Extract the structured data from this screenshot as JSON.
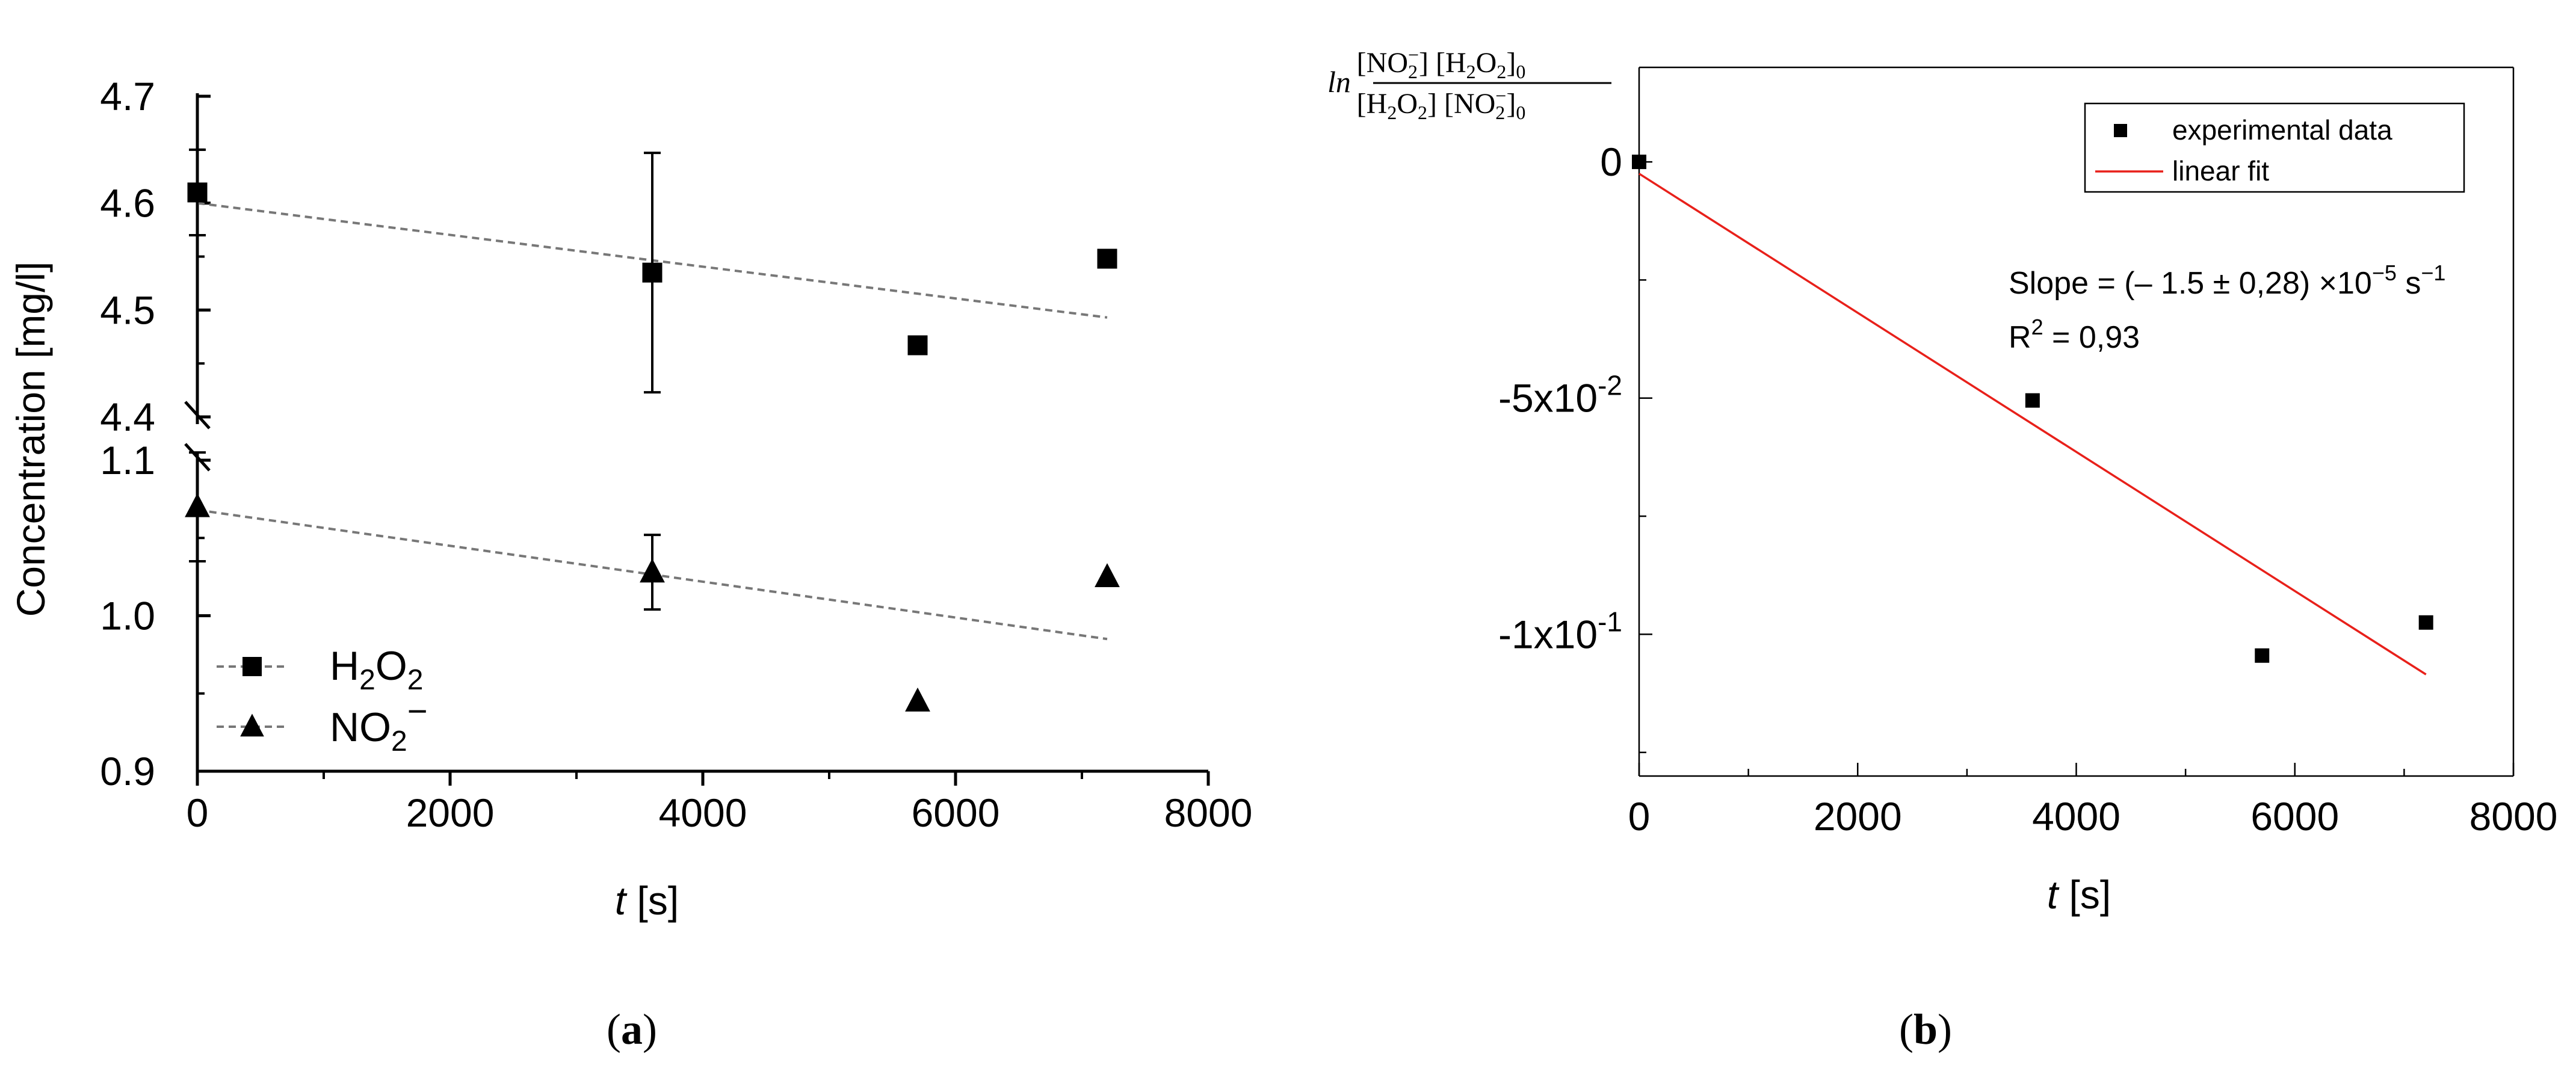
{
  "chart_data": [
    {
      "panel_label": "a",
      "type": "scatter",
      "xlabel_italic": "t",
      "xlabel_unit": "[s]",
      "ylabel": "Concentration [mg/l]",
      "x_ticks": [
        "0",
        "2000",
        "4000",
        "6000",
        "8000"
      ],
      "xlim": [
        0,
        8000
      ],
      "y_axis_broken": true,
      "y_upper": {
        "ylim": [
          4.4,
          4.7
        ],
        "ticks": [
          "4.4",
          "4.5",
          "4.6",
          "4.7"
        ]
      },
      "y_lower": {
        "ylim": [
          0.9,
          1.1
        ],
        "ticks": [
          "0.9",
          "1.0",
          "1.1"
        ]
      },
      "grid": false,
      "legend_position": "lower-left",
      "series": [
        {
          "name": "H2O2",
          "marker": "square",
          "segment": "upper",
          "x": [
            0,
            3600,
            5700,
            7200
          ],
          "y": [
            4.61,
            4.535,
            4.467,
            4.548
          ],
          "yerr": [
            0.04,
            0.112,
            0,
            0
          ],
          "fit": {
            "x": [
              0,
              7200
            ],
            "y": [
              4.6,
              4.493
            ]
          }
        },
        {
          "name": "NO2−",
          "marker": "triangle",
          "segment": "lower",
          "x": [
            0,
            3600,
            5700,
            7200
          ],
          "y": [
            1.07,
            1.028,
            0.945,
            1.025
          ],
          "yerr": [
            0.035,
            0.024,
            0,
            0
          ],
          "fit": {
            "x": [
              0,
              7200
            ],
            "y": [
              1.068,
              0.985
            ]
          }
        }
      ]
    },
    {
      "panel_label": "b",
      "type": "scatter",
      "xlabel_italic": "t",
      "xlabel_unit": "[s]",
      "ylabel_prefix": "ln",
      "x_ticks": [
        "0",
        "2000",
        "4000",
        "6000",
        "8000"
      ],
      "xlim": [
        0,
        8000
      ],
      "ylim": [
        -0.13,
        0.02
      ],
      "y_ticks": [
        {
          "value": 0,
          "base": "0",
          "exp": ""
        },
        {
          "value": -0.05,
          "base": "-5x10",
          "exp": "-2"
        },
        {
          "value": -0.1,
          "base": "-1x10",
          "exp": "-1"
        }
      ],
      "grid": false,
      "legend_position": "top-right",
      "series": [
        {
          "name": "experimental data",
          "marker": "square",
          "x": [
            0,
            3600,
            5700,
            7200
          ],
          "y": [
            0.0,
            -0.0505,
            -0.1045,
            -0.0975
          ]
        },
        {
          "name": "linear fit",
          "line": true,
          "color": "#e8201a",
          "x": [
            0,
            7200
          ],
          "y": [
            -0.0025,
            -0.1085
          ]
        }
      ],
      "annotations": {
        "slope_main": "Slope = (– 1.5 ± 0,28) ×10",
        "slope_exp": "−5",
        "slope_unit": "s",
        "slope_unit_exp": "−1",
        "r2_label": "R",
        "r2_exp": "2",
        "r2_value": "= 0,93"
      }
    }
  ],
  "colors": {
    "fit_dash": "#777777",
    "fit_line": "#e8201a",
    "axis": "#000000"
  }
}
